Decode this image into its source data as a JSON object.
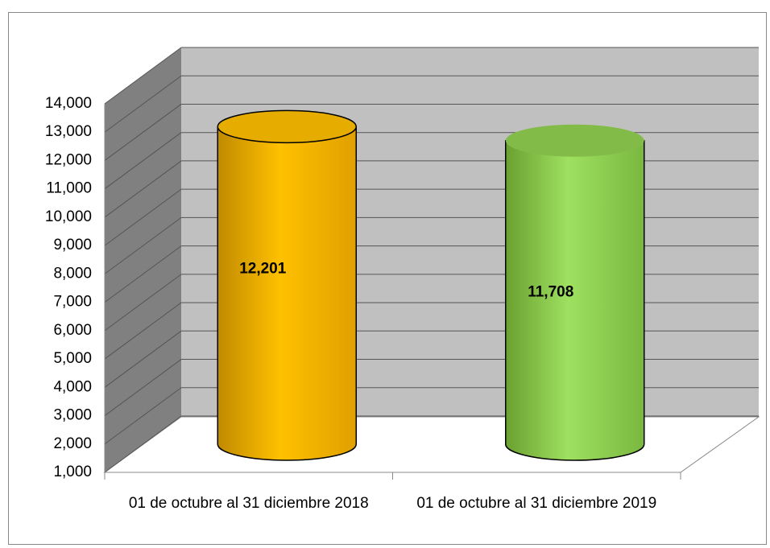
{
  "chart_data": {
    "type": "bar",
    "categories": [
      "01 de octubre al 31 diciembre 2018",
      "01 de octubre al 31 diciembre 2019"
    ],
    "values": [
      12201,
      11708
    ],
    "value_labels": [
      "12,201",
      "11,708"
    ],
    "colors": [
      "#ffc000",
      "#92d050"
    ],
    "ylim": [
      1000,
      14000
    ],
    "yticks": [
      {
        "value": 1000,
        "label": "1,000"
      },
      {
        "value": 2000,
        "label": "2,000"
      },
      {
        "value": 3000,
        "label": "3,000"
      },
      {
        "value": 4000,
        "label": "4,000"
      },
      {
        "value": 5000,
        "label": "5,000"
      },
      {
        "value": 6000,
        "label": "6,000"
      },
      {
        "value": 7000,
        "label": "7,000"
      },
      {
        "value": 8000,
        "label": "8,000"
      },
      {
        "value": 9000,
        "label": "9,000"
      },
      {
        "value": 10000,
        "label": "10,000"
      },
      {
        "value": 11000,
        "label": "11,000"
      },
      {
        "value": 12000,
        "label": "12,000"
      },
      {
        "value": 13000,
        "label": "13,000"
      },
      {
        "value": 14000,
        "label": "14,000"
      }
    ],
    "grid": true
  }
}
